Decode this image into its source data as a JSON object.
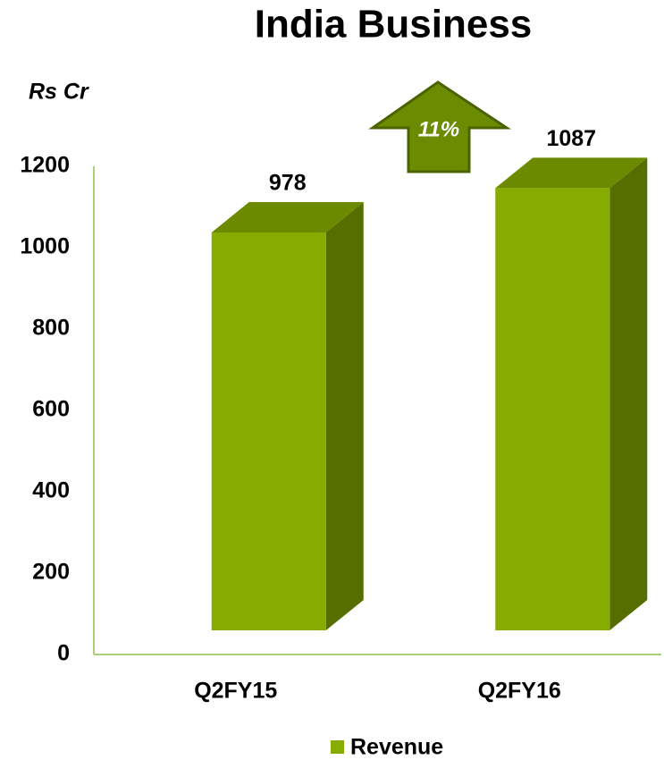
{
  "chart_data": {
    "type": "bar3d",
    "title": "India Business",
    "y_axis_label": "Rs Cr",
    "categories": [
      "Q2FY15",
      "Q2FY16"
    ],
    "series": [
      {
        "name": "Revenue",
        "color": "#86ac00",
        "values": [
          978,
          1087
        ]
      }
    ],
    "ylim": [
      0,
      1200
    ],
    "yticks": [
      0,
      200,
      400,
      600,
      800,
      1000,
      1200
    ],
    "annotation": "11%",
    "legend": "bottom"
  }
}
